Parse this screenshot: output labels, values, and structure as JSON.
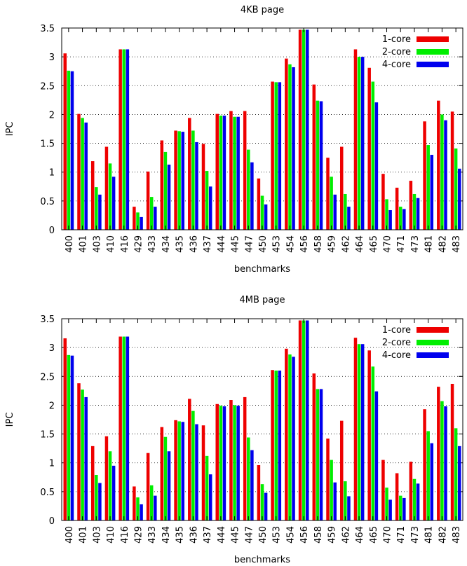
{
  "chart_data": [
    {
      "type": "bar",
      "title": "4KB page",
      "xlabel": "benchmarks",
      "ylabel": "IPC",
      "ylim": [
        0,
        3.5
      ],
      "yticks": [
        "0",
        "0.5",
        "1",
        "1.5",
        "2",
        "2.5",
        "3",
        "3.5"
      ],
      "grid": "horizontal-dotted",
      "legend_position": "top-right",
      "categories": [
        "400",
        "401",
        "403",
        "410",
        "416",
        "429",
        "433",
        "434",
        "435",
        "436",
        "437",
        "444",
        "445",
        "447",
        "450",
        "453",
        "454",
        "456",
        "458",
        "459",
        "462",
        "464",
        "465",
        "470",
        "471",
        "473",
        "481",
        "482",
        "483"
      ],
      "series": [
        {
          "name": "1-core",
          "color": "#ee0000",
          "values": [
            3.06,
            2.01,
            1.19,
            1.44,
            3.13,
            0.4,
            1.01,
            1.55,
            1.72,
            1.94,
            1.49,
            2.01,
            2.06,
            2.06,
            0.89,
            2.57,
            2.97,
            3.47,
            2.52,
            1.25,
            1.44,
            3.13,
            2.81,
            0.97,
            0.73,
            0.85,
            1.88,
            2.24,
            2.05
          ]
        },
        {
          "name": "2-core",
          "color": "#00ee00",
          "values": [
            2.76,
            1.94,
            0.74,
            1.15,
            3.13,
            0.3,
            0.57,
            1.35,
            1.71,
            1.72,
            1.02,
            1.98,
            1.96,
            1.39,
            0.59,
            2.56,
            2.87,
            3.47,
            2.24,
            0.92,
            0.62,
            3.0,
            2.57,
            0.53,
            0.4,
            0.62,
            1.47,
            2.0,
            1.41
          ]
        },
        {
          "name": "4-core",
          "color": "#0000ee",
          "values": [
            2.75,
            1.86,
            0.61,
            0.92,
            3.13,
            0.22,
            0.4,
            1.13,
            1.7,
            1.52,
            0.75,
            1.98,
            1.96,
            1.17,
            0.44,
            2.56,
            2.82,
            3.47,
            2.23,
            0.61,
            0.4,
            3.0,
            2.21,
            0.34,
            0.36,
            0.55,
            1.3,
            1.9,
            1.06
          ]
        }
      ]
    },
    {
      "type": "bar",
      "title": "4MB page",
      "xlabel": "benchmarks",
      "ylabel": "IPC",
      "ylim": [
        0,
        3.5
      ],
      "yticks": [
        "0",
        "0.5",
        "1",
        "1.5",
        "2",
        "2.5",
        "3",
        "3.5"
      ],
      "grid": "horizontal-dotted",
      "legend_position": "top-right",
      "categories": [
        "400",
        "401",
        "403",
        "410",
        "416",
        "429",
        "433",
        "434",
        "435",
        "436",
        "437",
        "444",
        "445",
        "447",
        "450",
        "453",
        "454",
        "456",
        "458",
        "459",
        "462",
        "464",
        "465",
        "470",
        "471",
        "473",
        "481",
        "482",
        "483"
      ],
      "series": [
        {
          "name": "1-core",
          "color": "#ee0000",
          "values": [
            3.16,
            2.38,
            1.29,
            1.46,
            3.19,
            0.59,
            1.17,
            1.62,
            1.74,
            2.11,
            1.65,
            2.02,
            2.09,
            2.14,
            0.96,
            2.61,
            2.98,
            3.47,
            2.55,
            1.42,
            1.73,
            3.17,
            2.95,
            1.05,
            0.82,
            1.02,
            1.93,
            2.32,
            2.37
          ]
        },
        {
          "name": "2-core",
          "color": "#00ee00",
          "values": [
            2.87,
            2.27,
            0.79,
            1.2,
            3.19,
            0.4,
            0.61,
            1.45,
            1.72,
            1.9,
            1.12,
            1.99,
            2.0,
            1.44,
            0.63,
            2.6,
            2.88,
            3.47,
            2.28,
            1.05,
            0.68,
            3.06,
            2.67,
            0.57,
            0.43,
            0.72,
            1.55,
            2.07,
            1.6
          ]
        },
        {
          "name": "4-core",
          "color": "#0000ee",
          "values": [
            2.86,
            2.14,
            0.65,
            0.95,
            3.19,
            0.28,
            0.43,
            1.2,
            1.71,
            1.67,
            0.8,
            1.98,
            1.99,
            1.22,
            0.48,
            2.6,
            2.84,
            3.47,
            2.28,
            0.66,
            0.42,
            3.06,
            2.24,
            0.36,
            0.39,
            0.64,
            1.34,
            1.98,
            1.29
          ]
        }
      ]
    }
  ]
}
